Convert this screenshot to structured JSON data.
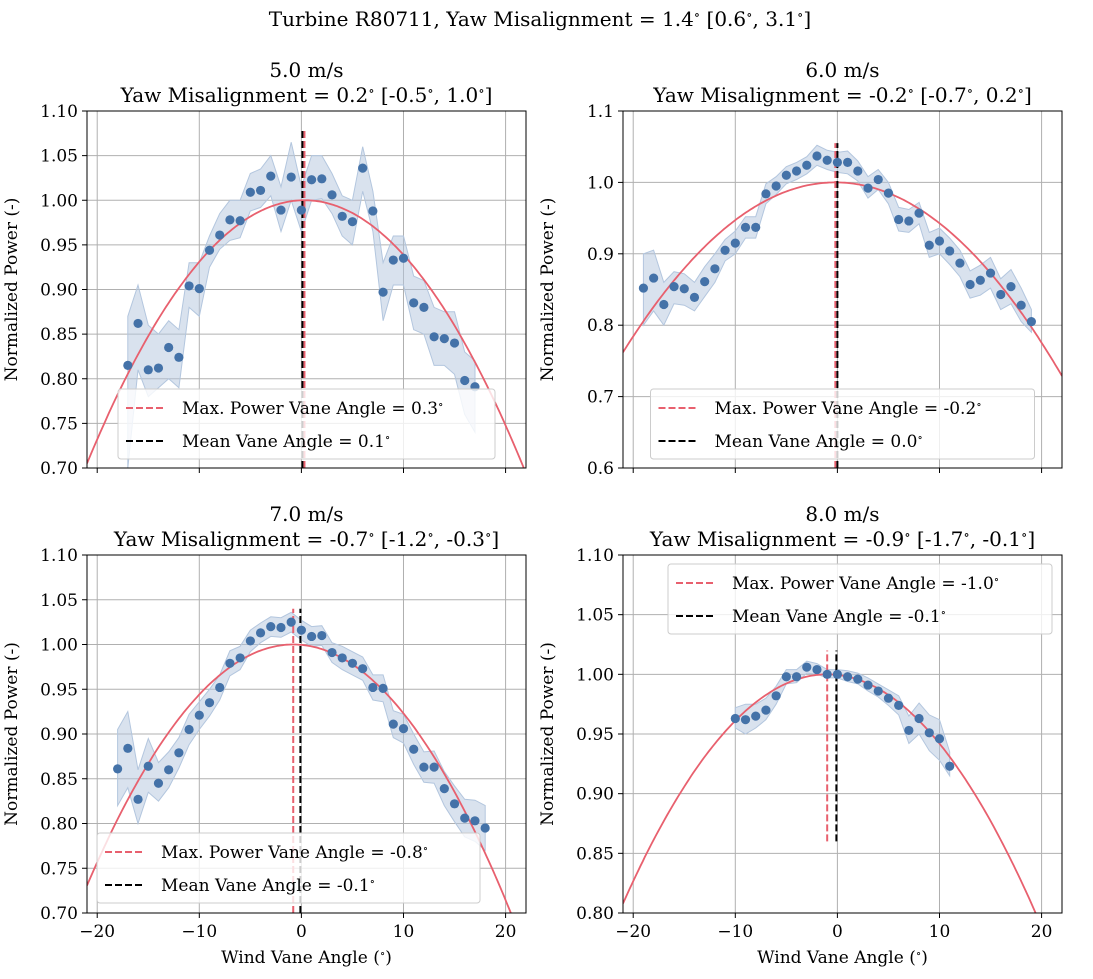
{
  "figure_title": "Turbine R80711, Yaw Misalignment = 1.4$^\\circ$ [0.6$^\\circ$, 3.1$^\\circ$]",
  "colors": {
    "points": "#4472a8",
    "band": "#b3c6de",
    "fit": "#e8606e",
    "mean": "#000000",
    "grid": "#b0b0b0"
  },
  "chart_data": [
    {
      "type": "scatter",
      "title_line1": "5.0 m/s",
      "title_line2": "Yaw Misalignment = 0.2$^\\circ$ [-0.5$^\\circ$, 1.0$^\\circ$]",
      "xlabel": "",
      "ylabel": "Normalized Power (-)",
      "xlim": [
        -21,
        22
      ],
      "ylim": [
        0.7,
        1.1
      ],
      "xticks": [
        -20,
        -10,
        0,
        10,
        20
      ],
      "xtick_labels": [
        "",
        "",
        "",
        "",
        ""
      ],
      "yticks": [
        0.7,
        0.75,
        0.8,
        0.85,
        0.9,
        0.95,
        1.0,
        1.05,
        1.1
      ],
      "ytick_labels": [
        "0.70",
        "0.75",
        "0.80",
        "0.85",
        "0.90",
        "0.95",
        "1.00",
        "1.05",
        "1.10"
      ],
      "grid": true,
      "legend_position": "lower-center",
      "x": [
        -17,
        -16,
        -15,
        -14,
        -13,
        -12,
        -11,
        -10,
        -9,
        -8,
        -7,
        -6,
        -5,
        -4,
        -3,
        -2,
        -1,
        0,
        1,
        2,
        3,
        4,
        5,
        6,
        7,
        8,
        9,
        10,
        11,
        12,
        13,
        14,
        15,
        16,
        17
      ],
      "y": [
        0.815,
        0.862,
        0.81,
        0.812,
        0.835,
        0.824,
        0.904,
        0.901,
        0.944,
        0.961,
        0.978,
        0.977,
        1.009,
        1.011,
        1.027,
        0.989,
        1.026,
        0.989,
        1.023,
        1.024,
        1.006,
        0.982,
        0.976,
        1.036,
        0.988,
        0.897,
        0.933,
        0.935,
        0.885,
        0.88,
        0.847,
        0.845,
        0.84,
        0.798,
        0.791
      ],
      "band_lower": [
        0.7,
        0.81,
        0.78,
        0.79,
        0.8,
        0.79,
        0.88,
        0.87,
        0.925,
        0.945,
        0.955,
        0.958,
        0.988,
        0.992,
        1.005,
        0.965,
        1.0,
        0.965,
        1.0,
        1.002,
        0.985,
        0.96,
        0.95,
        1.01,
        0.965,
        0.865,
        0.905,
        0.905,
        0.855,
        0.85,
        0.815,
        0.815,
        0.805,
        0.76,
        0.74
      ],
      "band_upper": [
        0.87,
        0.905,
        0.86,
        0.85,
        0.865,
        0.855,
        0.93,
        0.93,
        0.96,
        0.985,
        1.0,
        1.0,
        1.03,
        1.035,
        1.05,
        1.015,
        1.065,
        1.015,
        1.05,
        1.05,
        1.03,
        1.005,
        1.0,
        1.06,
        1.01,
        0.93,
        0.96,
        0.96,
        0.915,
        0.91,
        0.88,
        0.875,
        0.875,
        0.83,
        0.82
      ],
      "fit_peak_x": 0.3,
      "fit_curvature": 0.00065,
      "max_power_vane_angle": 0.3,
      "mean_vane_angle": 0.1,
      "vline_range": [
        0.7,
        1.08
      ],
      "legend": [
        "Max. Power Vane Angle = 0.3$^\\circ$",
        "Mean Vane Angle = 0.1$^\\circ$"
      ]
    },
    {
      "type": "scatter",
      "title_line1": "6.0 m/s",
      "title_line2": "Yaw Misalignment = -0.2$^\\circ$ [-0.7$^\\circ$, 0.2$^\\circ$]",
      "xlabel": "",
      "ylabel": "Normalized Power (-)",
      "xlim": [
        -21,
        22
      ],
      "ylim": [
        0.6,
        1.1
      ],
      "xticks": [
        -20,
        -10,
        0,
        10,
        20
      ],
      "xtick_labels": [
        "",
        "",
        "",
        "",
        ""
      ],
      "yticks": [
        0.6,
        0.7,
        0.8,
        0.9,
        1.0,
        1.1
      ],
      "ytick_labels": [
        "0.6",
        "0.7",
        "0.8",
        "0.9",
        "1.0",
        "1.1"
      ],
      "grid": true,
      "legend_position": "lower-center",
      "x": [
        -19,
        -18,
        -17,
        -16,
        -15,
        -14,
        -13,
        -12,
        -11,
        -10,
        -9,
        -8,
        -7,
        -6,
        -5,
        -4,
        -3,
        -2,
        -1,
        0,
        1,
        2,
        3,
        4,
        5,
        6,
        7,
        8,
        9,
        10,
        11,
        12,
        13,
        14,
        15,
        16,
        17,
        18,
        19
      ],
      "y": [
        0.852,
        0.866,
        0.829,
        0.854,
        0.851,
        0.839,
        0.861,
        0.879,
        0.905,
        0.915,
        0.937,
        0.937,
        0.984,
        0.995,
        1.01,
        1.016,
        1.024,
        1.037,
        1.031,
        1.028,
        1.028,
        1.016,
        0.992,
        1.004,
        0.985,
        0.948,
        0.946,
        0.957,
        0.912,
        0.918,
        0.904,
        0.887,
        0.857,
        0.863,
        0.873,
        0.843,
        0.854,
        0.828,
        0.805
      ],
      "band_lower": [
        0.8,
        0.82,
        0.8,
        0.83,
        0.828,
        0.82,
        0.84,
        0.86,
        0.89,
        0.9,
        0.922,
        0.922,
        0.97,
        0.983,
        0.998,
        1.004,
        1.012,
        1.024,
        1.018,
        1.014,
        1.012,
        1.002,
        0.978,
        0.99,
        0.97,
        0.932,
        0.93,
        0.942,
        0.895,
        0.9,
        0.885,
        0.868,
        0.838,
        0.842,
        0.852,
        0.822,
        0.83,
        0.805,
        0.79
      ],
      "band_upper": [
        0.9,
        0.905,
        0.86,
        0.875,
        0.872,
        0.86,
        0.882,
        0.9,
        0.92,
        0.932,
        0.952,
        0.952,
        0.998,
        1.008,
        1.022,
        1.028,
        1.036,
        1.052,
        1.045,
        1.042,
        1.044,
        1.03,
        1.008,
        1.018,
        1.0,
        0.965,
        0.962,
        0.972,
        0.93,
        0.936,
        0.922,
        0.905,
        0.876,
        0.884,
        0.895,
        0.865,
        0.878,
        0.852,
        0.822
      ],
      "fit_peak_x": -0.2,
      "fit_curvature": 0.00055,
      "max_power_vane_angle": -0.2,
      "mean_vane_angle": 0.0,
      "vline_range": [
        0.6,
        1.055
      ],
      "legend": [
        "Max. Power Vane Angle = -0.2$^\\circ$",
        "Mean Vane Angle = 0.0$^\\circ$"
      ]
    },
    {
      "type": "scatter",
      "title_line1": "7.0 m/s",
      "title_line2": "Yaw Misalignment = -0.7$^\\circ$ [-1.2$^\\circ$, -0.3$^\\circ$]",
      "xlabel": "Wind Vane Angle ($^\\circ$)",
      "ylabel": "Normalized Power (-)",
      "xlim": [
        -21,
        22
      ],
      "ylim": [
        0.7,
        1.1
      ],
      "xticks": [
        -20,
        -10,
        0,
        10,
        20
      ],
      "xtick_labels": [
        "−20",
        "−10",
        "0",
        "10",
        "20"
      ],
      "yticks": [
        0.7,
        0.75,
        0.8,
        0.85,
        0.9,
        0.95,
        1.0,
        1.05,
        1.1
      ],
      "ytick_labels": [
        "0.70",
        "0.75",
        "0.80",
        "0.85",
        "0.90",
        "0.95",
        "1.00",
        "1.05",
        "1.10"
      ],
      "grid": true,
      "legend_position": "lower-left",
      "x": [
        -18,
        -17,
        -16,
        -15,
        -14,
        -13,
        -12,
        -11,
        -10,
        -9,
        -8,
        -7,
        -6,
        -5,
        -4,
        -3,
        -2,
        -1,
        0,
        1,
        2,
        3,
        4,
        5,
        6,
        7,
        8,
        9,
        10,
        11,
        12,
        13,
        14,
        15,
        16,
        17,
        18
      ],
      "y": [
        0.861,
        0.884,
        0.827,
        0.864,
        0.845,
        0.86,
        0.879,
        0.905,
        0.921,
        0.935,
        0.952,
        0.979,
        0.985,
        1.004,
        1.013,
        1.02,
        1.019,
        1.025,
        1.016,
        1.009,
        1.01,
        0.991,
        0.985,
        0.979,
        0.973,
        0.952,
        0.951,
        0.911,
        0.906,
        0.883,
        0.863,
        0.863,
        0.839,
        0.822,
        0.806,
        0.803,
        0.795
      ],
      "band_lower": [
        0.82,
        0.84,
        0.8,
        0.835,
        0.825,
        0.84,
        0.862,
        0.888,
        0.905,
        0.92,
        0.938,
        0.965,
        0.972,
        0.992,
        1.002,
        1.009,
        1.008,
        1.014,
        1.005,
        0.998,
        0.999,
        0.98,
        0.972,
        0.966,
        0.96,
        0.938,
        0.936,
        0.896,
        0.89,
        0.866,
        0.846,
        0.845,
        0.82,
        0.802,
        0.785,
        0.78,
        0.77
      ],
      "band_upper": [
        0.905,
        0.925,
        0.86,
        0.895,
        0.868,
        0.88,
        0.896,
        0.922,
        0.936,
        0.95,
        0.966,
        0.993,
        0.998,
        1.016,
        1.024,
        1.031,
        1.03,
        1.036,
        1.027,
        1.02,
        1.021,
        1.002,
        0.998,
        0.992,
        0.986,
        0.966,
        0.966,
        0.926,
        0.922,
        0.9,
        0.88,
        0.881,
        0.858,
        0.842,
        0.827,
        0.826,
        0.82
      ],
      "fit_peak_x": -0.8,
      "fit_curvature": 0.00066,
      "max_power_vane_angle": -0.8,
      "mean_vane_angle": -0.1,
      "vline_range": [
        0.7,
        1.04
      ],
      "legend": [
        "Max. Power Vane Angle = -0.8$^\\circ$",
        "Mean Vane Angle = -0.1$^\\circ$"
      ]
    },
    {
      "type": "scatter",
      "title_line1": "8.0 m/s",
      "title_line2": "Yaw Misalignment = -0.9$^\\circ$ [-1.7$^\\circ$, -0.1$^\\circ$]",
      "xlabel": "Wind Vane Angle ($^\\circ$)",
      "ylabel": "Normalized Power (-)",
      "xlim": [
        -21,
        22
      ],
      "ylim": [
        0.8,
        1.1
      ],
      "xticks": [
        -20,
        -10,
        0,
        10,
        20
      ],
      "xtick_labels": [
        "−20",
        "−10",
        "0",
        "10",
        "20"
      ],
      "yticks": [
        0.8,
        0.85,
        0.9,
        0.95,
        1.0,
        1.05,
        1.1
      ],
      "ytick_labels": [
        "0.80",
        "0.85",
        "0.90",
        "0.95",
        "1.00",
        "1.05",
        "1.10"
      ],
      "grid": true,
      "legend_position": "upper-right",
      "x": [
        -10,
        -9,
        -8,
        -7,
        -6,
        -5,
        -4,
        -3,
        -2,
        -1,
        0,
        1,
        2,
        3,
        4,
        5,
        6,
        7,
        8,
        9,
        10,
        11
      ],
      "y": [
        0.963,
        0.962,
        0.965,
        0.97,
        0.982,
        0.998,
        0.998,
        1.006,
        1.004,
        1.0,
        1.0,
        0.998,
        0.996,
        0.991,
        0.986,
        0.98,
        0.974,
        0.953,
        0.963,
        0.951,
        0.946,
        0.923
      ],
      "band_lower": [
        0.955,
        0.95,
        0.955,
        0.962,
        0.975,
        0.992,
        0.993,
        1.001,
        1.0,
        0.997,
        0.997,
        0.994,
        0.992,
        0.986,
        0.981,
        0.974,
        0.966,
        0.942,
        0.95,
        0.936,
        0.928,
        0.915
      ],
      "band_upper": [
        0.972,
        0.975,
        0.975,
        0.98,
        0.99,
        1.004,
        1.004,
        1.011,
        1.009,
        1.004,
        1.004,
        1.003,
        1.001,
        0.997,
        0.992,
        0.987,
        0.982,
        0.965,
        0.976,
        0.966,
        0.962,
        0.935
      ],
      "fit_peak_x": -1.0,
      "fit_curvature": 0.00048,
      "max_power_vane_angle": -1.0,
      "mean_vane_angle": -0.1,
      "vline_range": [
        0.86,
        1.02
      ],
      "legend": [
        "Max. Power Vane Angle = -1.0$^\\circ$",
        "Mean Vane Angle = -0.1$^\\circ$"
      ]
    }
  ]
}
